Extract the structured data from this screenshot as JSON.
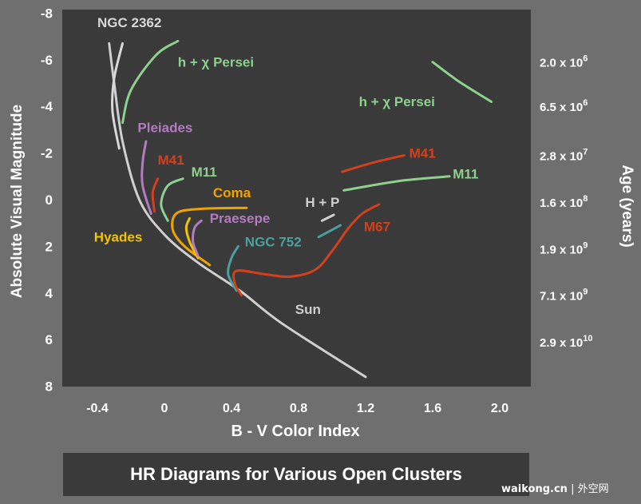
{
  "chart_data": {
    "type": "line",
    "title": "HR Diagrams for Various Open Clusters",
    "xlabel": "B - V Color Index",
    "ylabel": "Absolute Visual Magnitude",
    "y2label": "Age (years)",
    "xlim": [
      -0.6,
      2.15
    ],
    "ylim": [
      -8,
      8
    ],
    "y_inverted": true,
    "grid": false,
    "x_ticks": [
      "-0.4",
      "0",
      "0.4",
      "0.8",
      "1.2",
      "1.6",
      "2.0"
    ],
    "x_tick_values": [
      -0.4,
      0,
      0.4,
      0.8,
      1.2,
      1.6,
      2.0
    ],
    "y_ticks": [
      "-8",
      "-6",
      "-4",
      "-2",
      "0",
      "2",
      "4",
      "6",
      "8"
    ],
    "y_tick_values": [
      -8,
      -6,
      -4,
      -2,
      0,
      2,
      4,
      6,
      8
    ],
    "age_ticks": [
      {
        "mantissa": "2.0",
        "exp": "6",
        "mag": -5.9
      },
      {
        "mantissa": "6.5",
        "exp": "6",
        "mag": -4.0
      },
      {
        "mantissa": "2.8",
        "exp": "7",
        "mag": -1.9
      },
      {
        "mantissa": "1.6",
        "exp": "8",
        "mag": 0.1
      },
      {
        "mantissa": "1.9",
        "exp": "9",
        "mag": 2.1
      },
      {
        "mantissa": "7.1",
        "exp": "9",
        "mag": 4.1
      },
      {
        "mantissa": "2.9",
        "exp": "10",
        "mag": 6.1
      }
    ],
    "series": [
      {
        "name": "Sun",
        "label": "Sun",
        "color": "#cfcfcf",
        "label_at": [
          0.78,
          4.9
        ],
        "points": [
          [
            -0.33,
            -6.7
          ],
          [
            -0.3,
            -5
          ],
          [
            -0.25,
            -2.5
          ],
          [
            -0.15,
            0
          ],
          [
            0.0,
            1.5
          ],
          [
            0.2,
            2.7
          ],
          [
            0.45,
            3.9
          ],
          [
            0.7,
            5.3
          ],
          [
            1.2,
            7.6
          ]
        ]
      },
      {
        "name": "NGC 2362",
        "label": "NGC 2362",
        "color": "#d8d8d8",
        "label_at": [
          -0.4,
          -7.4
        ],
        "points": [
          [
            -0.25,
            -6.7
          ],
          [
            -0.3,
            -5.2
          ],
          [
            -0.31,
            -3.8
          ],
          [
            -0.27,
            -2.2
          ]
        ]
      },
      {
        "name": "h + χ Persei",
        "label": "h + χ Persei",
        "color": "#8ed08e",
        "label_at": [
          0.08,
          -5.7
        ],
        "points": [
          [
            0.08,
            -6.8
          ],
          [
            -0.05,
            -6.2
          ],
          [
            -0.2,
            -4.7
          ],
          [
            -0.25,
            -3.3
          ]
        ]
      },
      {
        "name": "h + χ Persei (giants)",
        "label": "h + χ Persei",
        "color": "#8ed08e",
        "label_at": [
          1.16,
          -4.0
        ],
        "points": [
          [
            1.6,
            -5.9
          ],
          [
            1.75,
            -5.1
          ],
          [
            1.95,
            -4.2
          ]
        ]
      },
      {
        "name": "Pleiades",
        "label": "Pleiades",
        "color": "#b47cc0",
        "label_at": [
          -0.16,
          -2.9
        ],
        "points": [
          [
            -0.11,
            -2.5
          ],
          [
            -0.13,
            -1.6
          ],
          [
            -0.13,
            -0.6
          ],
          [
            -0.08,
            0.6
          ]
        ]
      },
      {
        "name": "M41",
        "label": "M41",
        "color": "#d4401c",
        "label_at": [
          -0.04,
          -1.5
        ],
        "points": [
          [
            -0.04,
            -0.9
          ],
          [
            -0.07,
            -0.3
          ],
          [
            -0.06,
            0.5
          ]
        ]
      },
      {
        "name": "M41 (giants)",
        "label": "M41",
        "color": "#d4401c",
        "label_at": [
          1.46,
          -1.8
        ],
        "points": [
          [
            1.06,
            -1.2
          ],
          [
            1.25,
            -1.6
          ],
          [
            1.43,
            -1.9
          ]
        ]
      },
      {
        "name": "M11",
        "label": "M11",
        "color": "#8ed08e",
        "label_at": [
          0.16,
          -1.0
        ],
        "points": [
          [
            0.11,
            -0.9
          ],
          [
            0.02,
            -0.6
          ],
          [
            -0.02,
            0.2
          ],
          [
            0.02,
            0.9
          ]
        ]
      },
      {
        "name": "M11 (giants)",
        "label": "M11",
        "color": "#8ed08e",
        "label_at": [
          1.72,
          -0.9
        ],
        "points": [
          [
            1.07,
            -0.4
          ],
          [
            1.4,
            -0.8
          ],
          [
            1.7,
            -1.0
          ]
        ]
      },
      {
        "name": "Coma",
        "label": "Coma",
        "color": "#f0a400",
        "label_at": [
          0.29,
          -0.1
        ],
        "points": [
          [
            0.49,
            0.35
          ],
          [
            0.2,
            0.4
          ],
          [
            0.07,
            0.6
          ],
          [
            0.05,
            1.3
          ],
          [
            0.12,
            2.0
          ],
          [
            0.27,
            2.8
          ]
        ]
      },
      {
        "name": "Hyades",
        "label": "Hyades",
        "color": "#f2c400",
        "label_at": [
          -0.42,
          1.8
        ],
        "points": [
          [
            0.15,
            0.8
          ],
          [
            0.13,
            1.2
          ],
          [
            0.15,
            1.8
          ],
          [
            0.2,
            2.5
          ]
        ]
      },
      {
        "name": "Praesepe",
        "label": "Praesepe",
        "color": "#b47cc0",
        "label_at": [
          0.27,
          1.0
        ],
        "points": [
          [
            0.22,
            0.9
          ],
          [
            0.18,
            1.2
          ],
          [
            0.17,
            1.8
          ],
          [
            0.2,
            2.4
          ]
        ]
      },
      {
        "name": "H + P",
        "label": "H + P",
        "color": "#cfcfcf",
        "label_at": [
          0.84,
          0.3
        ],
        "points": [
          [
            0.94,
            0.9
          ],
          [
            1.01,
            0.65
          ]
        ]
      },
      {
        "name": "NGC 752",
        "label": "NGC 752",
        "color": "#4aa0a0",
        "label_at": [
          0.48,
          2.0
        ],
        "points": [
          [
            0.44,
            2.0
          ],
          [
            0.4,
            2.5
          ],
          [
            0.38,
            3.2
          ],
          [
            0.43,
            3.9
          ]
        ]
      },
      {
        "name": "NGC 752 (giants)",
        "label": "",
        "color": "#4aa0a0",
        "label_at": [
          0,
          0
        ],
        "points": [
          [
            0.92,
            1.6
          ],
          [
            1.05,
            1.1
          ]
        ]
      },
      {
        "name": "M67",
        "label": "M67",
        "color": "#d4401c",
        "label_at": [
          1.19,
          1.35
        ],
        "points": [
          [
            0.46,
            4.1
          ],
          [
            0.42,
            3.6
          ],
          [
            0.43,
            3.05
          ],
          [
            0.6,
            3.2
          ],
          [
            0.75,
            3.3
          ],
          [
            0.9,
            3.0
          ],
          [
            1.0,
            2.2
          ],
          [
            1.1,
            1.2
          ],
          [
            1.18,
            0.6
          ],
          [
            1.28,
            0.2
          ]
        ]
      }
    ]
  },
  "watermark": {
    "domain": "waikong.cn",
    "separator": "|",
    "site": "外空网"
  }
}
